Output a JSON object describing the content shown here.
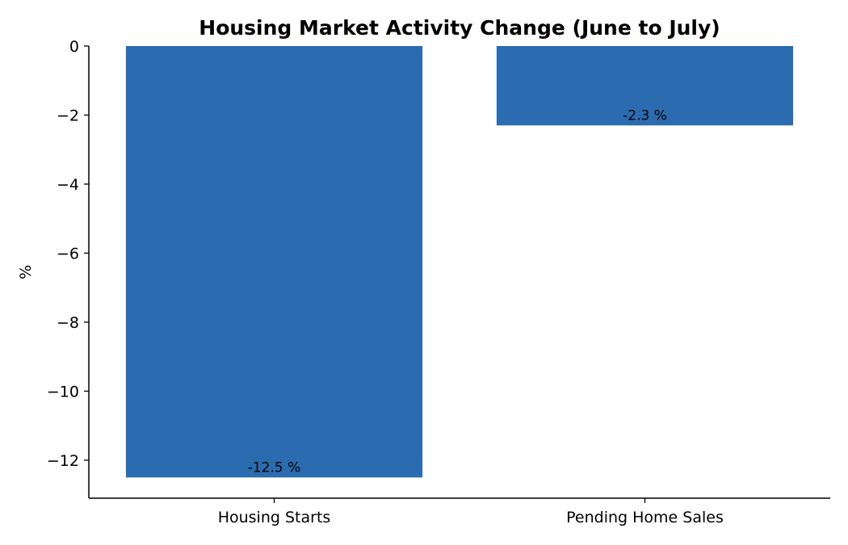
{
  "chart_data": {
    "type": "bar",
    "title": "Housing Market Activity Change (June to July)",
    "xlabel": "",
    "ylabel": "%",
    "categories": [
      "Housing Starts",
      "Pending Home Sales"
    ],
    "values": [
      -12.5,
      -2.3
    ],
    "data_labels": [
      "-12.5 %",
      "-2.3 %"
    ],
    "ylim": [
      -13.1,
      0
    ],
    "yticks": [
      0,
      -2,
      -4,
      -6,
      -8,
      -10,
      -12
    ],
    "ytick_labels": [
      "0",
      "−2",
      "−4",
      "−6",
      "−8",
      "−10",
      "−12"
    ],
    "bar_color": "#2b6cb0",
    "grid": false,
    "legend": "none"
  }
}
